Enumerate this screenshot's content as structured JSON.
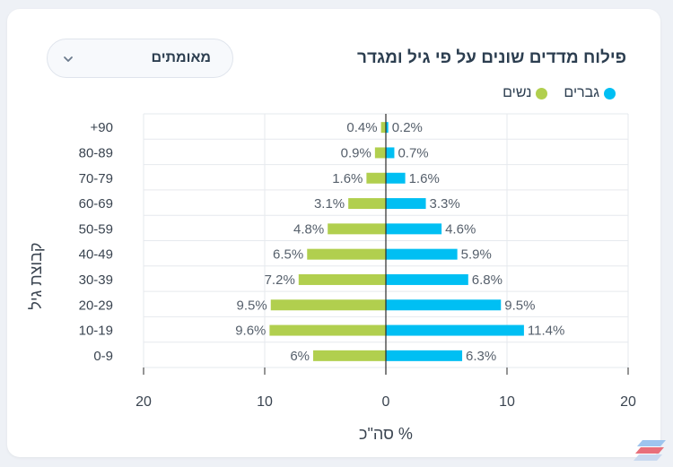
{
  "title": "פילוח מדדים שונים על פי גיל ומגדר",
  "dropdown": {
    "selected": "מאומתים"
  },
  "legend": [
    {
      "label": "גברים",
      "color": "#00bff3"
    },
    {
      "label": "נשים",
      "color": "#b1cf4e"
    }
  ],
  "chart_data": {
    "type": "bar",
    "orientation": "horizontal-diverging",
    "categories": [
      "+90",
      "80-89",
      "70-79",
      "60-69",
      "50-59",
      "40-49",
      "30-39",
      "20-29",
      "10-19",
      "0-9"
    ],
    "series": [
      {
        "name": "נשים",
        "color": "#b1cf4e",
        "side": "left",
        "values": [
          0.4,
          0.9,
          1.6,
          3.1,
          4.8,
          6.5,
          7.2,
          9.5,
          9.6,
          6
        ],
        "labels": [
          "0.4%",
          "0.9%",
          "1.6%",
          "3.1%",
          "4.8%",
          "6.5%",
          "7.2%",
          "9.5%",
          "9.6%",
          "6%"
        ]
      },
      {
        "name": "גברים",
        "color": "#00bff3",
        "side": "right",
        "values": [
          0.2,
          0.7,
          1.6,
          3.3,
          4.6,
          5.9,
          6.8,
          9.5,
          11.4,
          6.3
        ],
        "labels": [
          "0.2%",
          "0.7%",
          "1.6%",
          "3.3%",
          "4.6%",
          "5.9%",
          "6.8%",
          "9.5%",
          "11.4%",
          "6.3%"
        ]
      }
    ],
    "x_ticks": [
      "20",
      "10",
      "0",
      "10",
      "20"
    ],
    "x_tick_values": [
      -20,
      -10,
      0,
      10,
      20
    ],
    "xlim": [
      -20,
      20
    ],
    "xlabel": "% סה\"כ",
    "ylabel": "קבוצת גיל",
    "grid": true
  }
}
